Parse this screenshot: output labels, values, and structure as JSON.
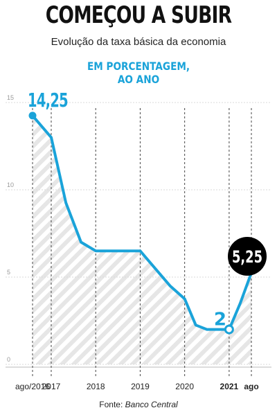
{
  "title": "COMEÇOU A SUBIR",
  "subtitle": "Evolução da taxa básica da economia",
  "unit_line1": "EM PORCENTAGEM,",
  "unit_line2": "AO ANO",
  "source_prefix": "Fonte:",
  "source_name": "Banco Central",
  "colors": {
    "line": "#1aa3d9",
    "badge": "#000000",
    "hatch": "#e6e6e6"
  },
  "chart_data": {
    "type": "line",
    "title": "COMEÇOU A SUBIR",
    "subtitle": "Evolução da taxa básica da economia",
    "ylabel": "EM PORCENTAGEM, AO ANO",
    "ylim": [
      0,
      15
    ],
    "y_ticks": [
      0,
      5,
      10,
      15
    ],
    "x_ticks": [
      {
        "label": "ago/2016",
        "t": 2016.58,
        "bold": false
      },
      {
        "label": "2017",
        "t": 2017.0,
        "bold": false
      },
      {
        "label": "2018",
        "t": 2018.0,
        "bold": false
      },
      {
        "label": "2019",
        "t": 2019.0,
        "bold": false
      },
      {
        "label": "2020",
        "t": 2020.0,
        "bold": false
      },
      {
        "label": "2021",
        "t": 2021.0,
        "bold": true
      },
      {
        "label": "ago",
        "t": 2021.5,
        "bold": true
      }
    ],
    "points": [
      {
        "t": 2016.58,
        "y": 14.25
      },
      {
        "t": 2017.0,
        "y": 13.0
      },
      {
        "t": 2017.33,
        "y": 9.25
      },
      {
        "t": 2017.67,
        "y": 7.0
      },
      {
        "t": 2018.0,
        "y": 6.5
      },
      {
        "t": 2019.0,
        "y": 6.5
      },
      {
        "t": 2019.67,
        "y": 4.5
      },
      {
        "t": 2020.0,
        "y": 3.75
      },
      {
        "t": 2020.25,
        "y": 2.25
      },
      {
        "t": 2020.5,
        "y": 2.0
      },
      {
        "t": 2021.0,
        "y": 2.0
      },
      {
        "t": 2021.25,
        "y": 3.5
      },
      {
        "t": 2021.5,
        "y": 5.25
      }
    ],
    "annotations": [
      {
        "text": "14,25",
        "t": 2016.58,
        "y": 14.25
      },
      {
        "text": "2",
        "t": 2021.0,
        "y": 2.0
      },
      {
        "text": "5,25",
        "t": 2021.5,
        "y": 5.25
      }
    ]
  }
}
